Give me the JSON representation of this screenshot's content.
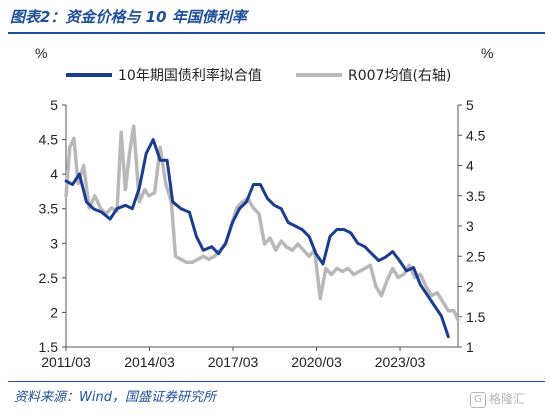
{
  "header": {
    "title": "图表2：资金价格与 10 年国债利率"
  },
  "footer": {
    "source": "资料来源：Wind，国盛证券研究所",
    "watermark_text": "格隆汇",
    "watermark_icon": "gelonghui-logo-icon"
  },
  "colors": {
    "title": "#1f4e9a",
    "series_10y": "#1a3d8f",
    "series_r007": "#b8b8b8"
  },
  "chart_data": {
    "type": "line",
    "left_unit": "%",
    "right_unit": "%",
    "x_tick_labels": [
      "2011/03",
      "2014/03",
      "2017/03",
      "2020/03",
      "2023/03"
    ],
    "x_tick_values": [
      2011.167,
      2014.167,
      2017.167,
      2020.167,
      2023.167
    ],
    "xlim": [
      2011.167,
      2025.25
    ],
    "ylim_left": [
      1.5,
      5
    ],
    "ylim_right": [
      1,
      5
    ],
    "y_ticks_left": [
      "1.5",
      "2",
      "2.5",
      "3",
      "3.5",
      "4",
      "4.5",
      "5"
    ],
    "y_ticks_right": [
      "1",
      "1.5",
      "2",
      "2.5",
      "3",
      "3.5",
      "4",
      "4.5",
      "5"
    ],
    "legend_position": "top",
    "grid": false,
    "series": [
      {
        "name": "10年期国债利率拟合值",
        "axis": "left",
        "x": [
          2011.17,
          2011.4,
          2011.65,
          2011.9,
          2012.15,
          2012.45,
          2012.75,
          2013.0,
          2013.3,
          2013.55,
          2013.8,
          2014.05,
          2014.3,
          2014.55,
          2014.8,
          2015.0,
          2015.3,
          2015.6,
          2015.85,
          2016.1,
          2016.4,
          2016.65,
          2016.9,
          2017.15,
          2017.4,
          2017.65,
          2017.9,
          2018.15,
          2018.4,
          2018.65,
          2018.9,
          2019.15,
          2019.4,
          2019.65,
          2019.9,
          2020.15,
          2020.4,
          2020.65,
          2020.9,
          2021.15,
          2021.4,
          2021.65,
          2021.9,
          2022.15,
          2022.4,
          2022.65,
          2022.9,
          2023.15,
          2023.4,
          2023.65,
          2023.9,
          2024.15,
          2024.4,
          2024.65,
          2024.9
        ],
        "values": [
          3.9,
          3.85,
          4.0,
          3.6,
          3.5,
          3.45,
          3.35,
          3.5,
          3.55,
          3.5,
          3.8,
          4.3,
          4.5,
          4.2,
          4.2,
          3.6,
          3.5,
          3.45,
          3.1,
          2.9,
          2.95,
          2.85,
          3.0,
          3.3,
          3.5,
          3.6,
          3.85,
          3.85,
          3.65,
          3.55,
          3.5,
          3.3,
          3.25,
          3.2,
          3.1,
          2.85,
          2.7,
          3.1,
          3.2,
          3.2,
          3.15,
          3.0,
          2.95,
          2.85,
          2.75,
          2.8,
          2.88,
          2.75,
          2.6,
          2.65,
          2.4,
          2.25,
          2.1,
          1.95,
          1.65
        ]
      },
      {
        "name": "R007均值(右轴)",
        "axis": "right",
        "x": [
          2011.17,
          2011.3,
          2011.45,
          2011.6,
          2011.8,
          2012.0,
          2012.2,
          2012.4,
          2012.6,
          2012.8,
          2013.0,
          2013.15,
          2013.3,
          2013.45,
          2013.6,
          2013.8,
          2014.0,
          2014.15,
          2014.35,
          2014.55,
          2014.75,
          2014.95,
          2015.1,
          2015.3,
          2015.5,
          2015.7,
          2015.9,
          2016.1,
          2016.3,
          2016.5,
          2016.7,
          2016.9,
          2017.1,
          2017.3,
          2017.5,
          2017.7,
          2017.9,
          2018.1,
          2018.3,
          2018.5,
          2018.7,
          2018.9,
          2019.1,
          2019.3,
          2019.5,
          2019.7,
          2019.9,
          2020.1,
          2020.3,
          2020.5,
          2020.7,
          2020.9,
          2021.1,
          2021.3,
          2021.5,
          2021.7,
          2021.9,
          2022.1,
          2022.3,
          2022.5,
          2022.7,
          2022.9,
          2023.1,
          2023.3,
          2023.5,
          2023.7,
          2023.9,
          2024.1,
          2024.3,
          2024.5,
          2024.7,
          2024.9,
          2025.1,
          2025.25
        ],
        "values": [
          3.5,
          4.3,
          4.45,
          3.7,
          4.0,
          3.3,
          3.5,
          3.3,
          3.2,
          3.3,
          3.25,
          4.55,
          3.6,
          4.2,
          4.65,
          3.4,
          3.6,
          3.5,
          3.55,
          4.3,
          3.7,
          3.4,
          2.5,
          2.45,
          2.4,
          2.4,
          2.45,
          2.5,
          2.45,
          2.5,
          2.6,
          2.7,
          3.0,
          3.3,
          3.4,
          3.45,
          3.3,
          3.2,
          2.7,
          2.8,
          2.6,
          2.75,
          2.65,
          2.6,
          2.7,
          2.6,
          2.5,
          2.6,
          1.8,
          2.3,
          2.2,
          2.3,
          2.25,
          2.3,
          2.2,
          2.25,
          2.3,
          2.35,
          2.0,
          1.85,
          2.1,
          2.3,
          2.15,
          2.2,
          2.35,
          2.15,
          2.2,
          2.0,
          1.85,
          1.9,
          1.75,
          1.6,
          1.6,
          1.45
        ]
      }
    ]
  }
}
